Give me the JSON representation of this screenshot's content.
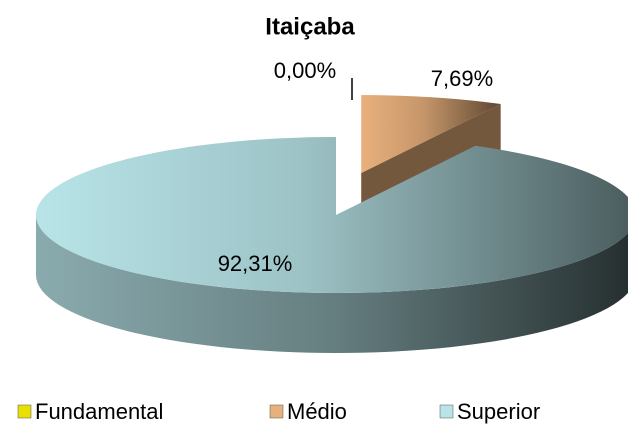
{
  "chart_data": {
    "type": "pie3d",
    "title": "Itaiçaba",
    "categories": [
      "Fundamental",
      "Médio",
      "Superior"
    ],
    "values": [
      0,
      7.69,
      92.31
    ],
    "value_labels": [
      "0,00%",
      "7,69%",
      "92,31%"
    ],
    "colors": [
      "#e8e000",
      "#e8b07c",
      "#b8e4e8"
    ],
    "explode": [
      false,
      true,
      false
    ],
    "legend": "bottom"
  }
}
